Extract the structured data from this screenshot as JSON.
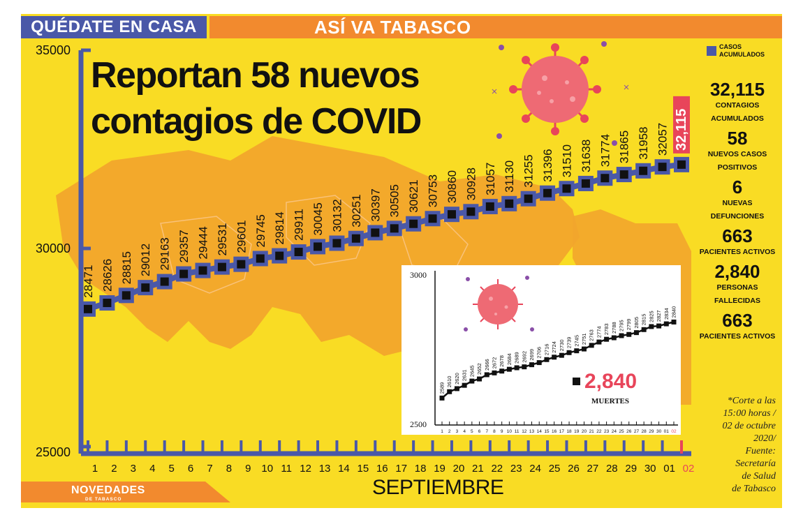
{
  "header": {
    "left_tag": "QUÉDATE EN CASA",
    "right_tag": "ASÍ VA TABASCO",
    "headline_line1": "Reportan 58 nuevos",
    "headline_line2": "contagios de COVID"
  },
  "legend": {
    "label_line1": "CASOS",
    "label_line2": "ACUMULADOS"
  },
  "stats": [
    {
      "value": "32,115",
      "label_line1": "CONTAGIOS",
      "label_line2": "ACUMULADOS"
    },
    {
      "value": "58",
      "label_line1": "NUEVOS CASOS",
      "label_line2": "POSITIVOS"
    },
    {
      "value": "6",
      "label_line1": "NUEVAS",
      "label_line2": "DEFUNCIONES"
    },
    {
      "value": "663",
      "label_line1": "PACIENTES ACTIVOS",
      "label_line2": ""
    },
    {
      "value": "2,840",
      "label_line1": "PERSONAS",
      "label_line2": "FALLECIDAS"
    },
    {
      "value": "663",
      "label_line1": "PACIENTES ACTIVOS",
      "label_line2": ""
    }
  ],
  "source_note": [
    "*Corte a las",
    "15:00 horas /",
    "02 de octubre",
    "2020/",
    "Fuente:",
    "Secretaría",
    "de Salud",
    "de Tabasco"
  ],
  "logo": {
    "name": "NOVEDADES",
    "sub": "DE TABASCO"
  },
  "colors": {
    "background": "#f9dc24",
    "accent_blue": "#4a58a8",
    "orange": "#f28a2e",
    "highlight_red": "#e8455a",
    "marker": "#111111"
  },
  "chart_data": [
    {
      "type": "line",
      "series": [
        {
          "name": "CASOS ACUMULADOS",
          "values": [
            28471,
            28626,
            28815,
            29012,
            29163,
            29357,
            29444,
            29531,
            29601,
            29745,
            29814,
            29911,
            30045,
            30132,
            30251,
            30397,
            30505,
            30621,
            30753,
            30860,
            30928,
            31057,
            31130,
            31255,
            31396,
            31510,
            31638,
            31774,
            31865,
            31958,
            32057,
            32115
          ]
        }
      ],
      "categories": [
        "1",
        "2",
        "3",
        "4",
        "5",
        "6",
        "7",
        "8",
        "9",
        "10",
        "11",
        "12",
        "13",
        "14",
        "15",
        "16",
        "17",
        "18",
        "19",
        "20",
        "21",
        "22",
        "23",
        "24",
        "25",
        "26",
        "27",
        "28",
        "29",
        "30",
        "01",
        "02"
      ],
      "data_labels": [
        "28471",
        "28626",
        "28815",
        "29012",
        "29163",
        "29357",
        "29444",
        "29531",
        "29601",
        "29745",
        "29814",
        "29911",
        "30045",
        "30132",
        "30251",
        "30397",
        "30505",
        "30621",
        "30753",
        "30860",
        "30928",
        "31057",
        "31130",
        "31255",
        "31396",
        "31510",
        "31638",
        "31774",
        "31865",
        "31958",
        "32057",
        "32,115"
      ],
      "y_ticks": [
        "25000",
        "30000",
        "35000"
      ],
      "ylim": [
        25000,
        35000
      ],
      "xlabel": "SEPTIEMBRE",
      "highlight_last": true,
      "grid": false
    },
    {
      "type": "line",
      "series": [
        {
          "values": [
            2589,
            2610,
            2620,
            2631,
            2645,
            2652,
            2666,
            2672,
            2678,
            2684,
            2689,
            2692,
            2699,
            2706,
            2716,
            2724,
            2730,
            2739,
            2745,
            2751,
            2763,
            2774,
            2783,
            2788,
            2795,
            2799,
            2805,
            2815,
            2825,
            2827,
            2834,
            2840
          ]
        }
      ],
      "categories": [
        "1",
        "2",
        "3",
        "4",
        "5",
        "6",
        "7",
        "8",
        "9",
        "10",
        "11",
        "12",
        "13",
        "14",
        "15",
        "16",
        "17",
        "18",
        "19",
        "20",
        "21",
        "22",
        "23",
        "24",
        "25",
        "26",
        "27",
        "28",
        "29",
        "30",
        "01",
        "02"
      ],
      "y_ticks": [
        "3000",
        "2500"
      ],
      "ylim": [
        2500,
        3000
      ],
      "annotation_value": "2,840",
      "annotation_label": "MUERTES",
      "grid": false
    }
  ]
}
